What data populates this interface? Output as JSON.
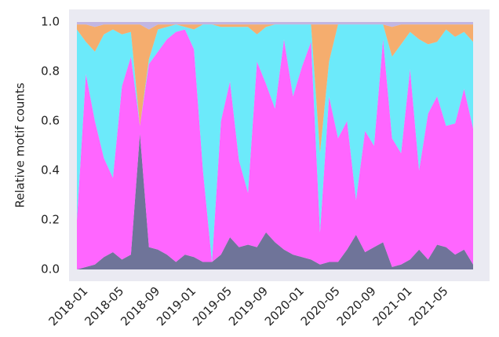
{
  "chart_data": {
    "type": "stacked_area",
    "y_label": "Relative motif counts",
    "x": [
      "2017-12",
      "2018-01",
      "2018-02",
      "2018-03",
      "2018-04",
      "2018-05",
      "2018-06",
      "2018-07",
      "2018-08",
      "2018-09",
      "2018-10",
      "2018-11",
      "2018-12",
      "2019-01",
      "2019-02",
      "2019-03",
      "2019-04",
      "2019-05",
      "2019-06",
      "2019-07",
      "2019-08",
      "2019-09",
      "2019-10",
      "2019-11",
      "2019-12",
      "2020-01",
      "2020-02",
      "2020-03",
      "2020-04",
      "2020-05",
      "2020-06",
      "2020-07",
      "2020-08",
      "2020-09",
      "2020-10",
      "2020-11",
      "2020-12",
      "2021-01",
      "2021-02",
      "2021-03",
      "2021-04",
      "2021-05",
      "2021-06",
      "2021-07",
      "2021-08"
    ],
    "series": [
      {
        "color": "#6f7499",
        "values": [
          0,
          0.01,
          0.02,
          0.05,
          0.07,
          0.04,
          0.06,
          0.55,
          0.09,
          0.08,
          0.06,
          0.03,
          0.06,
          0.05,
          0.03,
          0.03,
          0.06,
          0.13,
          0.09,
          0.1,
          0.09,
          0.15,
          0.11,
          0.08,
          0.06,
          0.05,
          0.04,
          0.02,
          0.03,
          0.03,
          0.08,
          0.14,
          0.07,
          0.09,
          0.11,
          0.01,
          0.02,
          0.04,
          0.08,
          0.04,
          0.1,
          0.09,
          0.06,
          0.08,
          0.02
        ]
      },
      {
        "color": "#ff66ff",
        "values": [
          0.2,
          0.78,
          0.58,
          0.4,
          0.3,
          0.7,
          0.8,
          0.03,
          0.74,
          0.8,
          0.87,
          0.93,
          0.91,
          0.84,
          0.37,
          0,
          0.54,
          0.63,
          0.35,
          0.21,
          0.75,
          0.6,
          0.54,
          0.85,
          0.64,
          0.77,
          0.88,
          0.13,
          0.67,
          0.5,
          0.52,
          0.14,
          0.49,
          0.41,
          0.82,
          0.52,
          0.45,
          0.77,
          0.32,
          0.59,
          0.6,
          0.49,
          0.53,
          0.65,
          0.55
        ]
      },
      {
        "color": "#6ceafa",
        "values": [
          0.77,
          0.13,
          0.28,
          0.5,
          0.6,
          0.21,
          0.1,
          0,
          0.02,
          0.09,
          0.05,
          0.03,
          0.01,
          0.08,
          0.59,
          0.96,
          0.38,
          0.22,
          0.54,
          0.67,
          0.11,
          0.23,
          0.34,
          0.06,
          0.29,
          0.17,
          0.07,
          0.32,
          0.14,
          0.46,
          0.39,
          0.71,
          0.43,
          0.49,
          0.06,
          0.33,
          0.44,
          0.15,
          0.53,
          0.28,
          0.22,
          0.39,
          0.35,
          0.23,
          0.35
        ]
      },
      {
        "color": "#f5ad6e",
        "values": [
          0.02,
          0.07,
          0.1,
          0.04,
          0.02,
          0.04,
          0.03,
          0.41,
          0.12,
          0.02,
          0.01,
          0,
          0.01,
          0.02,
          0,
          0,
          0.01,
          0.01,
          0.01,
          0.01,
          0.04,
          0.01,
          0,
          0,
          0,
          0,
          0,
          0.52,
          0.15,
          0,
          0,
          0,
          0,
          0,
          0,
          0.12,
          0.08,
          0.03,
          0.06,
          0.08,
          0.07,
          0.02,
          0.05,
          0.03,
          0.07
        ]
      },
      {
        "color": "#c2b6e2",
        "values": [
          0.01,
          0.01,
          0.02,
          0.01,
          0.01,
          0.01,
          0.01,
          0.01,
          0.03,
          0.01,
          0.01,
          0.01,
          0.01,
          0.01,
          0.01,
          0.01,
          0.01,
          0.01,
          0.01,
          0.01,
          0.01,
          0.01,
          0.01,
          0.01,
          0.01,
          0.01,
          0.01,
          0.01,
          0.01,
          0.01,
          0.01,
          0.01,
          0.01,
          0.01,
          0.01,
          0.02,
          0.01,
          0.01,
          0.01,
          0.01,
          0.01,
          0.01,
          0.01,
          0.01,
          0.01
        ]
      }
    ],
    "xlim": [
      "2017-12",
      "2021-08"
    ],
    "xticks": [
      "2018-01",
      "2018-05",
      "2018-09",
      "2019-01",
      "2019-05",
      "2019-09",
      "2020-01",
      "2020-05",
      "2020-09",
      "2021-01",
      "2021-05"
    ],
    "ylim": [
      0,
      1
    ],
    "yticks": [
      {
        "value": 0,
        "label": "0.0"
      },
      {
        "value": 0.2,
        "label": "0.2"
      },
      {
        "value": 0.4,
        "label": "0.4"
      },
      {
        "value": 0.6,
        "label": "0.6"
      },
      {
        "value": 0.8,
        "label": "0.8"
      },
      {
        "value": 1,
        "label": "1.0"
      }
    ],
    "grid": false,
    "background": "#eaeaf2"
  }
}
